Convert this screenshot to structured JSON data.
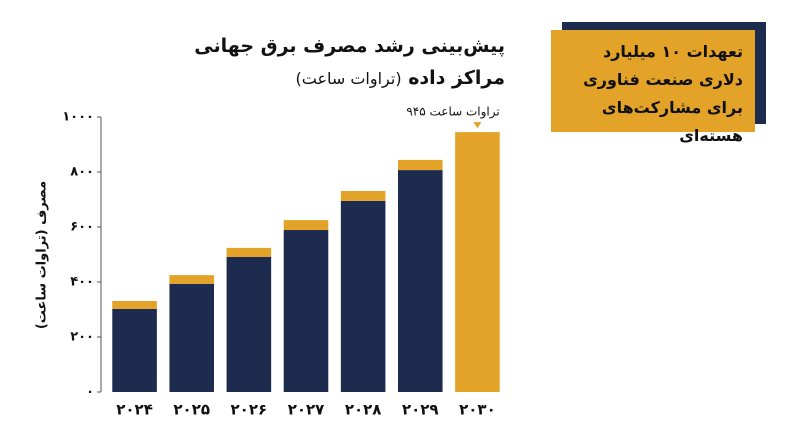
{
  "chart_data": {
    "type": "bar",
    "stacked": true,
    "title": [
      "پیش‌بینی رشد مصرف برق جهانی",
      "مراکز داده"
    ],
    "subtitle": "(تراوات ساعت)",
    "y_label": "مصرف (تراوات ساعت)",
    "categories": [
      "۲۰۲۴",
      "۲۰۲۵",
      "۲۰۲۶",
      "۲۰۲۷",
      "۲۰۲۸",
      "۲۰۲۹",
      "۲۰۳۰"
    ],
    "series": [
      {
        "color": "#1d2b4f",
        "values": [
          302,
          393,
          491,
          589,
          695,
          807,
          null
        ]
      },
      {
        "color": "#e3a228",
        "values": [
          29,
          32,
          33,
          36,
          36,
          37,
          945
        ],
        "value_labels": [
          null,
          null,
          null,
          null,
          null,
          null,
          "۹۴۵ تراوات ساعت"
        ]
      }
    ],
    "ylim": [
      0,
      1000
    ],
    "yticks": [
      {
        "value": 0,
        "label": "۰"
      },
      {
        "value": 200,
        "label": "۲۰۰"
      },
      {
        "value": 400,
        "label": "۴۰۰"
      },
      {
        "value": 600,
        "label": "۶۰۰"
      },
      {
        "value": 800,
        "label": "۸۰۰"
      },
      {
        "value": 1000,
        "label": "۱۰۰۰"
      }
    ],
    "grid": false,
    "annotation": "تعهدات ۱۰ میلیارد دلاری صنعت فناوری برای مشارکت‌های هسته‌ای"
  }
}
